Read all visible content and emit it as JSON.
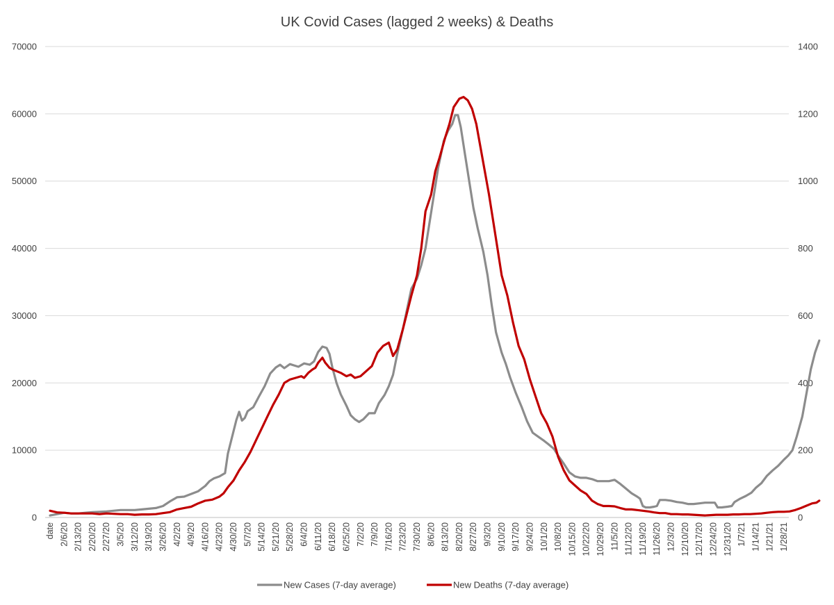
{
  "chart_data": {
    "type": "line",
    "title": "UK Covid Cases (lagged 2 weeks) & Deaths",
    "left_axis": {
      "min": 0,
      "max": 70000,
      "ticks": [
        "0",
        "10000",
        "20000",
        "30000",
        "40000",
        "50000",
        "60000",
        "70000"
      ]
    },
    "right_axis": {
      "min": 0,
      "max": 1400,
      "ticks": [
        "0",
        "200",
        "400",
        "600",
        "800",
        "1000",
        "1200",
        "1400"
      ]
    },
    "categories": [
      "date",
      "2/6/20",
      "2/13/20",
      "2/20/20",
      "2/27/20",
      "3/5/20",
      "3/12/20",
      "3/19/20",
      "3/26/20",
      "4/2/20",
      "4/9/20",
      "4/16/20",
      "4/23/20",
      "4/30/20",
      "5/7/20",
      "5/14/20",
      "5/21/20",
      "5/28/20",
      "6/4/20",
      "6/11/20",
      "6/18/20",
      "6/25/20",
      "7/2/20",
      "7/9/20",
      "7/16/20",
      "7/23/20",
      "7/30/20",
      "8/6/20",
      "8/13/20",
      "8/20/20",
      "8/27/20",
      "9/3/20",
      "9/10/20",
      "9/17/20",
      "9/24/20",
      "10/1/20",
      "10/8/20",
      "10/15/20",
      "10/22/20",
      "10/29/20",
      "11/5/20",
      "11/12/20",
      "11/19/20",
      "11/26/20",
      "12/3/20",
      "12/10/20",
      "12/17/20",
      "12/24/20",
      "12/31/20",
      "1/7/21",
      "1/14/21",
      "1/21/21",
      "1/28/21"
    ],
    "series": [
      {
        "name": "New Cases (7-day average)",
        "axis": "left",
        "color": "#8c8c8c",
        "points": [
          [
            0,
            300
          ],
          [
            0.5,
            500
          ],
          [
            1,
            700
          ],
          [
            1.5,
            600
          ],
          [
            2,
            600
          ],
          [
            2.5,
            700
          ],
          [
            3,
            800
          ],
          [
            3.5,
            850
          ],
          [
            4,
            900
          ],
          [
            4.5,
            1000
          ],
          [
            5,
            1100
          ],
          [
            5.5,
            1100
          ],
          [
            6,
            1100
          ],
          [
            6.5,
            1200
          ],
          [
            7,
            1300
          ],
          [
            7.5,
            1400
          ],
          [
            8,
            1700
          ],
          [
            8.5,
            2400
          ],
          [
            9,
            3000
          ],
          [
            9.5,
            3100
          ],
          [
            10,
            3500
          ],
          [
            10.5,
            3900
          ],
          [
            11,
            4700
          ],
          [
            11.3,
            5400
          ],
          [
            11.6,
            5800
          ],
          [
            12,
            6100
          ],
          [
            12.4,
            6600
          ],
          [
            12.6,
            9500
          ],
          [
            12.9,
            12000
          ],
          [
            13.2,
            14500
          ],
          [
            13.4,
            15700
          ],
          [
            13.6,
            14400
          ],
          [
            13.8,
            14800
          ],
          [
            14,
            15800
          ],
          [
            14.4,
            16400
          ],
          [
            14.8,
            18000
          ],
          [
            15.2,
            19500
          ],
          [
            15.6,
            21400
          ],
          [
            16,
            22300
          ],
          [
            16.3,
            22700
          ],
          [
            16.6,
            22200
          ],
          [
            17,
            22800
          ],
          [
            17.3,
            22600
          ],
          [
            17.6,
            22400
          ],
          [
            18,
            22900
          ],
          [
            18.4,
            22700
          ],
          [
            18.7,
            23200
          ],
          [
            19,
            24600
          ],
          [
            19.3,
            25400
          ],
          [
            19.6,
            25200
          ],
          [
            19.8,
            24300
          ],
          [
            20,
            22300
          ],
          [
            20.3,
            20000
          ],
          [
            20.6,
            18300
          ],
          [
            21,
            16600
          ],
          [
            21.3,
            15200
          ],
          [
            21.6,
            14600
          ],
          [
            21.9,
            14200
          ],
          [
            22.2,
            14600
          ],
          [
            22.6,
            15500
          ],
          [
            23,
            15500
          ],
          [
            23.3,
            17000
          ],
          [
            23.7,
            18200
          ],
          [
            24,
            19500
          ],
          [
            24.3,
            21200
          ],
          [
            24.6,
            24300
          ],
          [
            25,
            28000
          ],
          [
            25.3,
            31000
          ],
          [
            25.6,
            34000
          ],
          [
            26,
            35500
          ],
          [
            26.3,
            37500
          ],
          [
            26.6,
            40000
          ],
          [
            26.9,
            44000
          ],
          [
            27.2,
            48000
          ],
          [
            27.5,
            52000
          ],
          [
            27.9,
            56000
          ],
          [
            28.2,
            57500
          ],
          [
            28.5,
            58500
          ],
          [
            28.7,
            59800
          ],
          [
            28.9,
            59800
          ],
          [
            29.1,
            58000
          ],
          [
            29.4,
            54000
          ],
          [
            29.7,
            50000
          ],
          [
            30,
            46000
          ],
          [
            30.3,
            43000
          ],
          [
            30.7,
            39500
          ],
          [
            31,
            36000
          ],
          [
            31.3,
            31500
          ],
          [
            31.6,
            27500
          ],
          [
            32,
            24500
          ],
          [
            32.3,
            22800
          ],
          [
            32.6,
            20800
          ],
          [
            33,
            18500
          ],
          [
            33.4,
            16500
          ],
          [
            33.8,
            14300
          ],
          [
            34.2,
            12600
          ],
          [
            34.6,
            12000
          ],
          [
            35,
            11400
          ],
          [
            35.3,
            10900
          ],
          [
            35.7,
            10200
          ],
          [
            36,
            9200
          ],
          [
            36.4,
            8000
          ],
          [
            36.8,
            6700
          ],
          [
            37.2,
            6100
          ],
          [
            37.6,
            5900
          ],
          [
            38,
            5900
          ],
          [
            38.4,
            5700
          ],
          [
            38.8,
            5400
          ],
          [
            39.2,
            5400
          ],
          [
            39.6,
            5400
          ],
          [
            40,
            5600
          ],
          [
            40.4,
            5000
          ],
          [
            40.8,
            4300
          ],
          [
            41.2,
            3600
          ],
          [
            41.6,
            3100
          ],
          [
            41.8,
            2800
          ],
          [
            42,
            1700
          ],
          [
            42.2,
            1500
          ],
          [
            42.5,
            1500
          ],
          [
            42.8,
            1600
          ],
          [
            43,
            1700
          ],
          [
            43.2,
            2600
          ],
          [
            43.6,
            2600
          ],
          [
            44,
            2500
          ],
          [
            44.4,
            2300
          ],
          [
            44.8,
            2200
          ],
          [
            45.2,
            2000
          ],
          [
            45.6,
            2000
          ],
          [
            46,
            2100
          ],
          [
            46.4,
            2200
          ],
          [
            46.8,
            2200
          ],
          [
            47.1,
            2200
          ],
          [
            47.3,
            1500
          ],
          [
            47.6,
            1500
          ],
          [
            48,
            1600
          ],
          [
            48.3,
            1700
          ],
          [
            48.5,
            2300
          ],
          [
            48.9,
            2800
          ],
          [
            49.3,
            3200
          ],
          [
            49.7,
            3700
          ],
          [
            50,
            4400
          ],
          [
            50.4,
            5100
          ],
          [
            50.8,
            6200
          ],
          [
            51.2,
            7000
          ],
          [
            51.6,
            7700
          ],
          [
            52,
            8600
          ],
          [
            52.3,
            9200
          ],
          [
            52.6,
            10000
          ],
          [
            52.9,
            12000
          ],
          [
            53.3,
            15000
          ],
          [
            53.6,
            18500
          ],
          [
            53.9,
            22000
          ],
          [
            54.2,
            24500
          ],
          [
            54.5,
            26300
          ]
        ]
      },
      {
        "name": "New Deaths (7-day average)",
        "axis": "right",
        "color": "#c00000",
        "points": [
          [
            0,
            20
          ],
          [
            0.5,
            15
          ],
          [
            1,
            14
          ],
          [
            1.5,
            12
          ],
          [
            2,
            12
          ],
          [
            2.5,
            12
          ],
          [
            3,
            12
          ],
          [
            3.5,
            10
          ],
          [
            4,
            12
          ],
          [
            4.5,
            11
          ],
          [
            5,
            10
          ],
          [
            5.5,
            10
          ],
          [
            6,
            8
          ],
          [
            6.5,
            9
          ],
          [
            7,
            9
          ],
          [
            7.5,
            10
          ],
          [
            8,
            13
          ],
          [
            8.5,
            16
          ],
          [
            9,
            24
          ],
          [
            9.5,
            28
          ],
          [
            10,
            32
          ],
          [
            10.5,
            42
          ],
          [
            11,
            50
          ],
          [
            11.5,
            53
          ],
          [
            12,
            62
          ],
          [
            12.3,
            72
          ],
          [
            12.6,
            90
          ],
          [
            13,
            110
          ],
          [
            13.4,
            140
          ],
          [
            13.8,
            165
          ],
          [
            14.2,
            195
          ],
          [
            14.6,
            230
          ],
          [
            15,
            265
          ],
          [
            15.4,
            300
          ],
          [
            15.8,
            335
          ],
          [
            16.2,
            365
          ],
          [
            16.6,
            400
          ],
          [
            17,
            410
          ],
          [
            17.4,
            415
          ],
          [
            17.8,
            420
          ],
          [
            18,
            415
          ],
          [
            18.3,
            430
          ],
          [
            18.6,
            440
          ],
          [
            18.8,
            445
          ],
          [
            19,
            460
          ],
          [
            19.3,
            475
          ],
          [
            19.5,
            460
          ],
          [
            19.8,
            445
          ],
          [
            20,
            440
          ],
          [
            20.3,
            435
          ],
          [
            20.6,
            430
          ],
          [
            21,
            420
          ],
          [
            21.3,
            425
          ],
          [
            21.6,
            415
          ],
          [
            22,
            420
          ],
          [
            22.4,
            435
          ],
          [
            22.8,
            450
          ],
          [
            23.2,
            490
          ],
          [
            23.6,
            510
          ],
          [
            24,
            520
          ],
          [
            24.3,
            480
          ],
          [
            24.6,
            500
          ],
          [
            25,
            560
          ],
          [
            25.3,
            610
          ],
          [
            25.6,
            660
          ],
          [
            26,
            720
          ],
          [
            26.3,
            800
          ],
          [
            26.6,
            910
          ],
          [
            27,
            960
          ],
          [
            27.3,
            1030
          ],
          [
            27.6,
            1070
          ],
          [
            28,
            1130
          ],
          [
            28.3,
            1170
          ],
          [
            28.6,
            1220
          ],
          [
            29,
            1245
          ],
          [
            29.3,
            1250
          ],
          [
            29.6,
            1240
          ],
          [
            29.9,
            1215
          ],
          [
            30.2,
            1170
          ],
          [
            30.5,
            1100
          ],
          [
            30.8,
            1030
          ],
          [
            31.1,
            960
          ],
          [
            31.4,
            880
          ],
          [
            31.7,
            800
          ],
          [
            32,
            720
          ],
          [
            32.4,
            660
          ],
          [
            32.8,
            580
          ],
          [
            33.2,
            510
          ],
          [
            33.6,
            470
          ],
          [
            34,
            410
          ],
          [
            34.4,
            360
          ],
          [
            34.8,
            310
          ],
          [
            35.2,
            280
          ],
          [
            35.6,
            240
          ],
          [
            36,
            180
          ],
          [
            36.4,
            140
          ],
          [
            36.8,
            110
          ],
          [
            37.2,
            95
          ],
          [
            37.6,
            80
          ],
          [
            38,
            70
          ],
          [
            38.4,
            50
          ],
          [
            38.8,
            40
          ],
          [
            39.2,
            34
          ],
          [
            39.6,
            34
          ],
          [
            40,
            33
          ],
          [
            40.4,
            28
          ],
          [
            40.8,
            24
          ],
          [
            41.2,
            24
          ],
          [
            41.6,
            22
          ],
          [
            42,
            20
          ],
          [
            42.4,
            18
          ],
          [
            42.8,
            15
          ],
          [
            43.2,
            13
          ],
          [
            43.6,
            13
          ],
          [
            44,
            10
          ],
          [
            44.4,
            10
          ],
          [
            44.8,
            9
          ],
          [
            45.2,
            9
          ],
          [
            45.6,
            8
          ],
          [
            46,
            7
          ],
          [
            46.4,
            6
          ],
          [
            46.8,
            7
          ],
          [
            47.2,
            8
          ],
          [
            47.6,
            8
          ],
          [
            48,
            8
          ],
          [
            48.4,
            9
          ],
          [
            48.8,
            9
          ],
          [
            49.2,
            10
          ],
          [
            49.6,
            10
          ],
          [
            50,
            11
          ],
          [
            50.4,
            12
          ],
          [
            50.8,
            14
          ],
          [
            51.2,
            16
          ],
          [
            51.6,
            17
          ],
          [
            52,
            17
          ],
          [
            52.4,
            18
          ],
          [
            52.8,
            22
          ],
          [
            53.2,
            28
          ],
          [
            53.6,
            35
          ],
          [
            54,
            42
          ],
          [
            54.3,
            44
          ],
          [
            54.5,
            50
          ]
        ]
      }
    ],
    "legend": {
      "placement": "bottom-center"
    },
    "grid": true
  }
}
